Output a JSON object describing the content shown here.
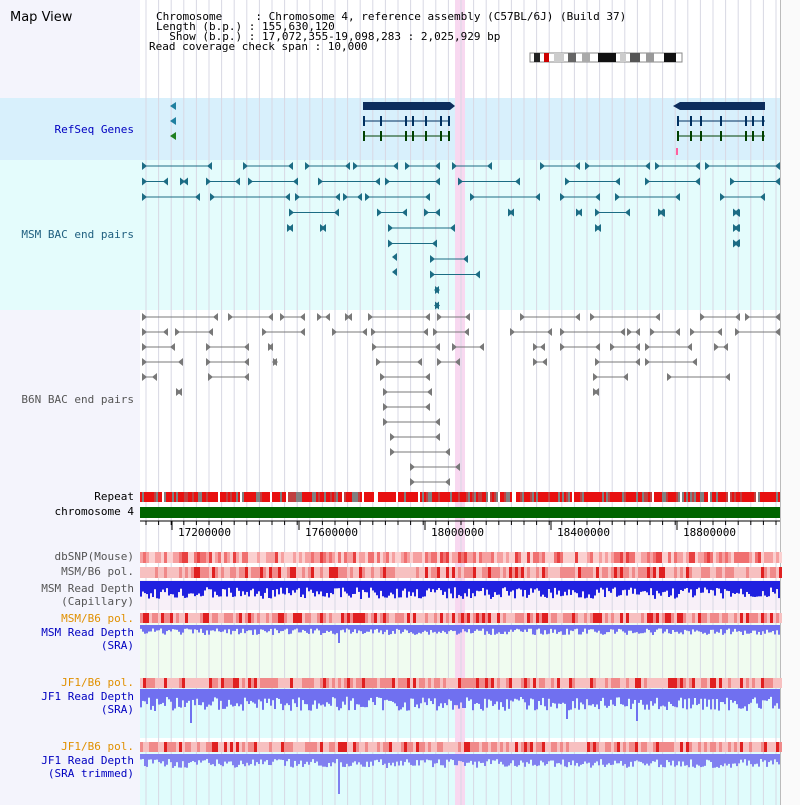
{
  "title": "Map View",
  "header": {
    "lines": [
      "Chromosome     : Chromosome 4, reference assembly (C57BL/6J) (Build 37)",
      "Length (b.p.) : 155,630,120",
      "  Show (b.p.) : 17,072,355-19,098,283 : 2,025,929 bp",
      "Read coverage check span : 10,000"
    ]
  },
  "tracks": {
    "refseq": "RefSeq Genes",
    "msm_bac": "MSM BAC end pairs",
    "b6n_bac": "B6N BAC end pairs",
    "repeat": "Repeat",
    "chromosome": "chromosome 4",
    "dbsnp": "dbSNP(Mouse)",
    "msm_b6_pol_1": "MSM/B6 pol.",
    "msm_depth_cap_1": "MSM Read Depth",
    "msm_depth_cap_2": "(Capillary)",
    "msm_b6_pol_2": "MSM/B6 pol.",
    "msm_depth_sra_1": "MSM Read Depth",
    "msm_depth_sra_2": "(SRA)",
    "jf1_b6_pol_1": "JF1/B6 pol.",
    "jf1_depth_sra_1": "JF1 Read Depth",
    "jf1_depth_sra_2": "(SRA)",
    "jf1_b6_pol_2": "JF1/B6 pol.",
    "jf1_depth_trim_1": "JF1 Read Depth",
    "jf1_depth_trim_2": "(SRA trimmed)"
  },
  "axis": {
    "ticks": [
      "17200000",
      "17600000",
      "18000000",
      "18400000",
      "18800000"
    ]
  },
  "colors": {
    "highlight": "#f8d8f0",
    "refseq_bg": "#d8f0fc",
    "msm_bg": "#e0fcfc",
    "b6n_bg": "#f0f0f8",
    "gene_dark": "#0c2c5c",
    "msm_line": "#1c6c84",
    "b6n_line": "#787878",
    "chrom": "#006400",
    "depth_blue": "#2020e0",
    "depth_light": "#7070f0",
    "label_blue": "#0000c0",
    "label_teal": "#206080",
    "label_orange": "#e09000"
  }
}
